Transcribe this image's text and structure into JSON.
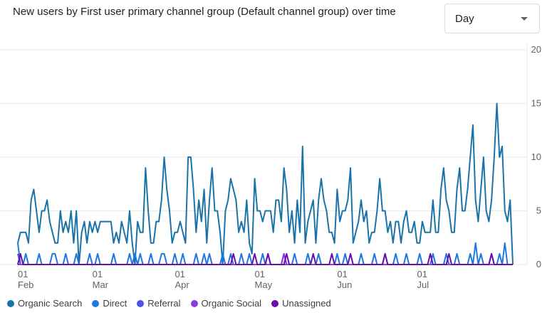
{
  "card": {
    "title": "New users by First user primary channel group (Default channel group) over time"
  },
  "granularity": {
    "selected": "Day"
  },
  "chart_data": {
    "type": "line",
    "title": "New users by First user primary channel group (Default channel group) over time",
    "xlabel": "",
    "ylabel": "",
    "ylim": [
      0,
      20
    ],
    "y_ticks": [
      "0",
      "5",
      "10",
      "15",
      "20"
    ],
    "x_ticks": [
      {
        "day": "01",
        "month": "Feb",
        "index": 0
      },
      {
        "day": "01",
        "month": "Mar",
        "index": 28
      },
      {
        "day": "01",
        "month": "Apr",
        "index": 59
      },
      {
        "day": "01",
        "month": "May",
        "index": 89
      },
      {
        "day": "01",
        "month": "Jun",
        "index": 120
      },
      {
        "day": "01",
        "month": "Jul",
        "index": 150
      }
    ],
    "x_start": "2024-01-30",
    "x_end": "2024-07-31",
    "grid": true,
    "legend_position": "bottom",
    "series": [
      {
        "name": "Organic Search",
        "color": "#1a73a8",
        "values": [
          2,
          3,
          3,
          3,
          2,
          6,
          7,
          5,
          3,
          5,
          5,
          6,
          4,
          3,
          2,
          2,
          5,
          3,
          4,
          3,
          5,
          2,
          5,
          0,
          3,
          4,
          2,
          4,
          3,
          4,
          3,
          4,
          4,
          4,
          4,
          4,
          2,
          3,
          2,
          4,
          3,
          2,
          5,
          2,
          0,
          4,
          3,
          3,
          9,
          5,
          2,
          2,
          4,
          4,
          6,
          10,
          7,
          5,
          2,
          3,
          3,
          4,
          3,
          2,
          10,
          10,
          7,
          3,
          6,
          4,
          7,
          2,
          6,
          9,
          5,
          5,
          3,
          0,
          5,
          6,
          8,
          7,
          6,
          3,
          4,
          3,
          6,
          2,
          1,
          8,
          5,
          5,
          4,
          5,
          5,
          5,
          3,
          6,
          6,
          4,
          9,
          7,
          3,
          5,
          2,
          6,
          3,
          11,
          2,
          4,
          5,
          6,
          2,
          6,
          8,
          6,
          5,
          3,
          3,
          2,
          7,
          4,
          5,
          5,
          6,
          9,
          2,
          3,
          4,
          6,
          4,
          5,
          2,
          3,
          3,
          5,
          8,
          5,
          5,
          3,
          4,
          2,
          4,
          4,
          2,
          4,
          5,
          3,
          3,
          4,
          2,
          2,
          4,
          3,
          3,
          3,
          6,
          3,
          3,
          7,
          9,
          6,
          5,
          3,
          3,
          7,
          9,
          5,
          5,
          7,
          10,
          13,
          6,
          4,
          7,
          10,
          5,
          4,
          6,
          10,
          15,
          10,
          11,
          5,
          4,
          6,
          0
        ]
      },
      {
        "name": "Direct",
        "color": "#1f77e0",
        "values": [
          2,
          0,
          0,
          1,
          0,
          0,
          0,
          0,
          1,
          0,
          0,
          0,
          0,
          1,
          1,
          0,
          0,
          0,
          1,
          0,
          0,
          0,
          1,
          0,
          0,
          0,
          0,
          1,
          0,
          0,
          1,
          0,
          0,
          0,
          0,
          0,
          1,
          0,
          0,
          0,
          0,
          0,
          1,
          0,
          1,
          0,
          1,
          0,
          0,
          0,
          1,
          0,
          0,
          0,
          1,
          1,
          0,
          0,
          0,
          1,
          0,
          0,
          1,
          0,
          0,
          0,
          0,
          1,
          0,
          0,
          1,
          0,
          1,
          0,
          0,
          0,
          0,
          1,
          0,
          0,
          1,
          0,
          0,
          0,
          1,
          0,
          0,
          1,
          0,
          0,
          0,
          0,
          1,
          0,
          1,
          0,
          0,
          0,
          0,
          0,
          1,
          0,
          0,
          0,
          1,
          0,
          0,
          0,
          0,
          1,
          0,
          0,
          0,
          1,
          0,
          0,
          0,
          0,
          0,
          0,
          1,
          0,
          0,
          1,
          0,
          0,
          0,
          0,
          0,
          1,
          0,
          0,
          0,
          0,
          1,
          0,
          0,
          0,
          1,
          0,
          0,
          0,
          1,
          0,
          0,
          0,
          1,
          0,
          0,
          0,
          0,
          1,
          0,
          0,
          0,
          0,
          1,
          0,
          0,
          0,
          0,
          1,
          0,
          0,
          0,
          1,
          0,
          0,
          0,
          0,
          1,
          0,
          2,
          0,
          1,
          0,
          0,
          0,
          1,
          0,
          0,
          1,
          0,
          2,
          0,
          0,
          0
        ]
      },
      {
        "name": "Referral",
        "color": "#4a56e2",
        "values": [
          1,
          0,
          0,
          0,
          0,
          0,
          0,
          0,
          0,
          0,
          0,
          0,
          0,
          0,
          0,
          0,
          0,
          0,
          0,
          0,
          0,
          0,
          0,
          0,
          0,
          0,
          0,
          0,
          0,
          0,
          0,
          0,
          0,
          0,
          0,
          0,
          0,
          0,
          0,
          0,
          0,
          0,
          0,
          0,
          0,
          0,
          0,
          0,
          0,
          0,
          0,
          0,
          0,
          0,
          0,
          0,
          0,
          0,
          0,
          0,
          0,
          0,
          0,
          0,
          0,
          0,
          0,
          0,
          0,
          0,
          0,
          0,
          0,
          0,
          0,
          0,
          0,
          0,
          0,
          0,
          0,
          0,
          0,
          0,
          0,
          0,
          0,
          0,
          0,
          0,
          0,
          0,
          0,
          0,
          0,
          0,
          0,
          0,
          0,
          0,
          0,
          0,
          0,
          0,
          0,
          0,
          0,
          0,
          0,
          0,
          0,
          0,
          0,
          0,
          0,
          0,
          0,
          0,
          0,
          0,
          0,
          0,
          0,
          0,
          0,
          0,
          0,
          0,
          0,
          0,
          0,
          0,
          0,
          0,
          0,
          0,
          0,
          0,
          0,
          0,
          0,
          0,
          0,
          0,
          0,
          0,
          0,
          0,
          0,
          0,
          0,
          0,
          0,
          0,
          0,
          0,
          0,
          0,
          0,
          0,
          0,
          0,
          0,
          0,
          0,
          0,
          0,
          0,
          0,
          0,
          0,
          0,
          0,
          0,
          0,
          0,
          0,
          0,
          0,
          0,
          0,
          0,
          0,
          0,
          0,
          0,
          0
        ]
      },
      {
        "name": "Organic Social",
        "color": "#8a3ce0",
        "values": [
          0,
          0,
          0,
          0,
          0,
          0,
          0,
          0,
          0,
          0,
          0,
          0,
          0,
          0,
          0,
          0,
          0,
          0,
          0,
          0,
          0,
          0,
          0,
          0,
          0,
          0,
          0,
          0,
          0,
          0,
          0,
          0,
          0,
          0,
          0,
          0,
          0,
          0,
          0,
          0,
          0,
          0,
          0,
          0,
          0,
          0,
          0,
          0,
          0,
          0,
          0,
          0,
          0,
          0,
          0,
          0,
          0,
          0,
          0,
          0,
          0,
          0,
          0,
          0,
          0,
          0,
          0,
          0,
          0,
          0,
          0,
          0,
          0,
          0,
          0,
          0,
          0,
          0,
          0,
          0,
          0,
          0,
          0,
          0,
          0,
          0,
          0,
          0,
          0,
          0,
          0,
          0,
          0,
          0,
          0,
          0,
          0,
          0,
          0,
          0,
          1,
          0,
          0,
          0,
          0,
          0,
          0,
          0,
          0,
          0,
          0,
          0,
          0,
          0,
          0,
          0,
          0,
          0,
          0,
          0,
          0,
          0,
          0,
          0,
          0,
          0,
          0,
          0,
          0,
          0,
          0,
          0,
          0,
          0,
          0,
          0,
          0,
          0,
          0,
          0,
          0,
          0,
          0,
          0,
          0,
          0,
          0,
          0,
          0,
          0,
          0,
          0,
          0,
          0,
          0,
          0,
          0,
          0,
          0,
          0,
          0,
          0,
          0,
          0,
          0,
          0,
          0,
          0,
          0,
          0,
          0,
          0,
          0,
          0,
          0,
          0,
          0,
          0,
          0,
          0,
          0,
          0,
          0,
          0,
          0,
          0,
          0
        ]
      },
      {
        "name": "Unassigned",
        "color": "#6a0fa8",
        "values": [
          0,
          1,
          0,
          0,
          0,
          0,
          0,
          0,
          0,
          0,
          0,
          0,
          0,
          0,
          0,
          0,
          0,
          0,
          0,
          0,
          0,
          0,
          0,
          0,
          0,
          0,
          0,
          0,
          0,
          0,
          0,
          0,
          0,
          0,
          0,
          0,
          0,
          0,
          0,
          0,
          0,
          0,
          0,
          0,
          0,
          0,
          0,
          0,
          0,
          0,
          0,
          0,
          0,
          0,
          0,
          0,
          0,
          0,
          0,
          0,
          0,
          0,
          0,
          0,
          0,
          0,
          0,
          0,
          0,
          0,
          0,
          0,
          0,
          0,
          0,
          0,
          0,
          0,
          0,
          0,
          0,
          1,
          0,
          0,
          0,
          0,
          0,
          0,
          0,
          1,
          0,
          0,
          0,
          0,
          1,
          0,
          0,
          0,
          0,
          0,
          0,
          1,
          0,
          0,
          0,
          0,
          0,
          0,
          0,
          0,
          0,
          1,
          0,
          0,
          0,
          0,
          0,
          0,
          1,
          0,
          0,
          0,
          0,
          0,
          0,
          1,
          0,
          0,
          0,
          0,
          0,
          0,
          0,
          0,
          0,
          0,
          0,
          0,
          1,
          0,
          0,
          0,
          0,
          0,
          0,
          0,
          0,
          0,
          0,
          0,
          0,
          0,
          0,
          0,
          0,
          1,
          0,
          0,
          0,
          0,
          0,
          0,
          1,
          0,
          0,
          0,
          0,
          0,
          0,
          0,
          0,
          0,
          0,
          0,
          0,
          0,
          0,
          0,
          1,
          0,
          0,
          0,
          0,
          0,
          0,
          0,
          0
        ]
      }
    ]
  }
}
